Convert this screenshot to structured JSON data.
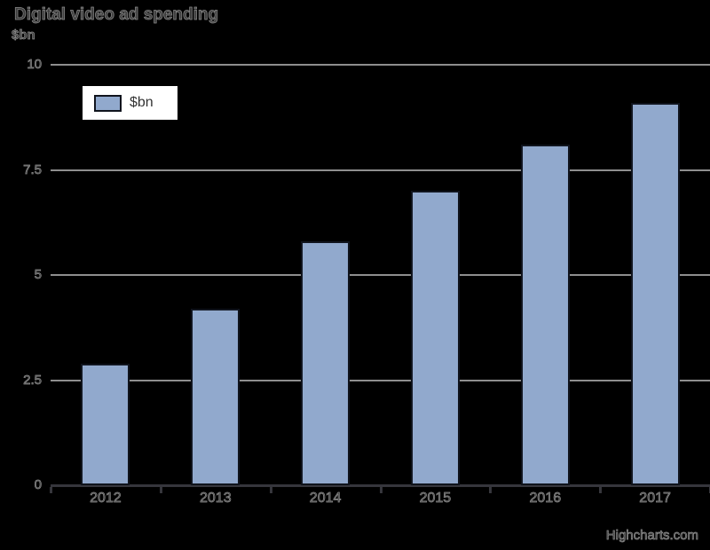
{
  "chart_data": {
    "type": "bar",
    "title": "Digital video ad spending",
    "subtitle": "",
    "xlabel": "",
    "ylabel": "$bn",
    "categories": [
      "2012",
      "2013",
      "2014",
      "2015",
      "2016",
      "2017"
    ],
    "series": [
      {
        "name": "$bn",
        "values": [
          2.9,
          4.2,
          5.8,
          7.0,
          8.1,
          9.1
        ]
      }
    ],
    "ylim": [
      0,
      10
    ],
    "yticks": [
      0,
      2.5,
      5,
      7.5,
      10
    ],
    "ytick_labels": [
      "0",
      "2.5",
      "5",
      "7.5",
      "10"
    ],
    "grid": true,
    "legend_position": "top-left",
    "bar_color": "#91a9cd",
    "bar_border_color": "#10141d"
  },
  "legend": {
    "label": "$bn"
  },
  "credits": {
    "text": "Highcharts.com"
  },
  "colors": {
    "background": "#000000",
    "gridline": "#8e8e8e",
    "axis_line": "#36363c",
    "legend_bg": "#ffffff",
    "legend_text": "#333333"
  }
}
